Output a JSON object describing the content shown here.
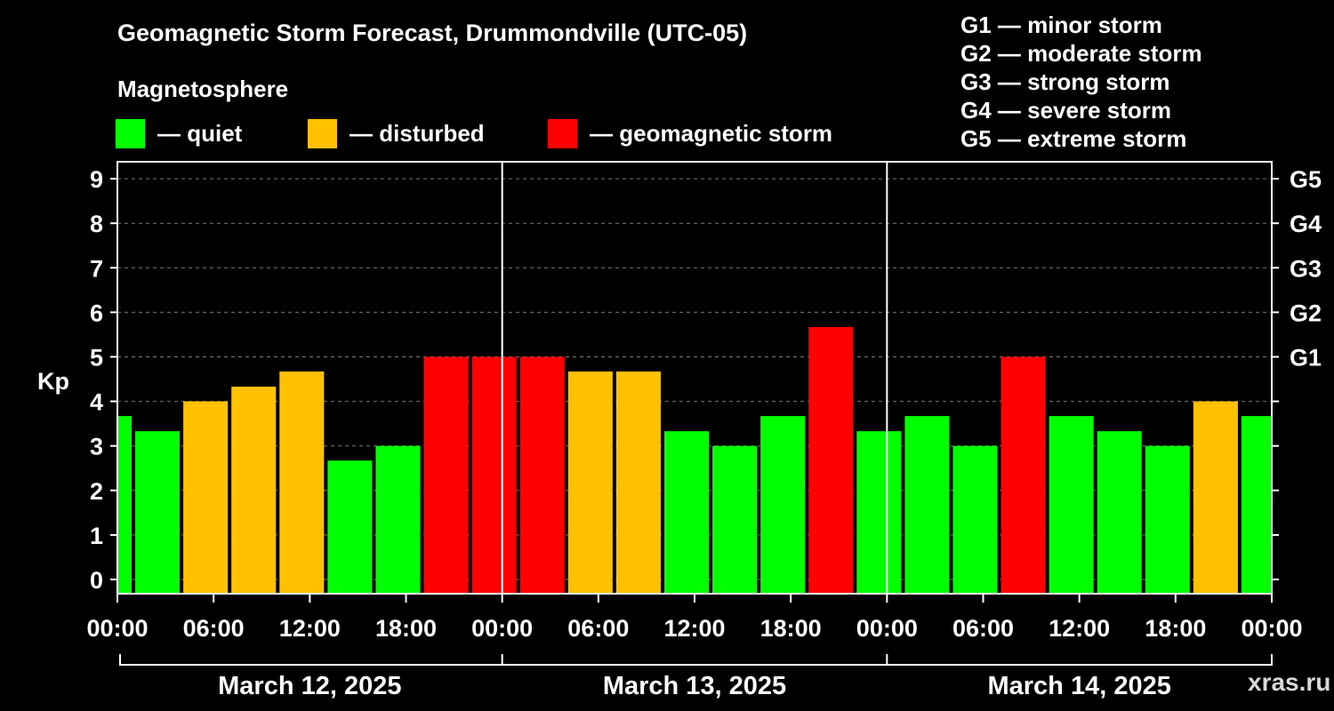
{
  "title": "Geomagnetic Storm Forecast, Drummondville (UTC-05)",
  "legend": {
    "heading": "Magnetosphere",
    "items": [
      {
        "label": "— quiet",
        "color": "#00ff00"
      },
      {
        "label": "— disturbed",
        "color": "#ffc000"
      },
      {
        "label": "— geomagnetic storm",
        "color": "#ff0000"
      }
    ]
  },
  "g_scale": [
    "G1 — minor storm",
    "G2 — moderate storm",
    "G3 — strong storm",
    "G4 — severe storm",
    "G5 — extreme storm"
  ],
  "watermark": "xras.ru",
  "chart_data": {
    "type": "bar",
    "ylabel": "Kp",
    "ylim": [
      0,
      9
    ],
    "yticks": [
      "0",
      "1",
      "2",
      "3",
      "4",
      "5",
      "6",
      "7",
      "8",
      "9"
    ],
    "right_axis_labels": [
      {
        "kp": 5,
        "label": "G1"
      },
      {
        "kp": 6,
        "label": "G2"
      },
      {
        "kp": 7,
        "label": "G3"
      },
      {
        "kp": 8,
        "label": "G4"
      },
      {
        "kp": 9,
        "label": "G5"
      }
    ],
    "grid": "dashed horizontal at each Kp level",
    "x_tick_labels": [
      "00:00",
      "06:00",
      "12:00",
      "18:00",
      "00:00",
      "06:00",
      "12:00",
      "18:00",
      "00:00",
      "06:00",
      "12:00",
      "18:00",
      "00:00"
    ],
    "days": [
      "March 12, 2025",
      "March 13, 2025",
      "March 14, 2025"
    ],
    "colors": {
      "quiet": "#00ff00",
      "disturbed": "#ffc000",
      "storm": "#ff0000"
    },
    "first_bar_start_hour": -2,
    "bar_interval_hours": 3,
    "kp_values": [
      3.67,
      3.33,
      4.0,
      4.33,
      4.67,
      2.67,
      3.0,
      5.0,
      5.0,
      5.0,
      4.67,
      4.67,
      3.33,
      3.0,
      3.67,
      5.67,
      3.33,
      3.67,
      3.0,
      5.0,
      3.67,
      3.33,
      3.0,
      4.0,
      3.67
    ]
  }
}
